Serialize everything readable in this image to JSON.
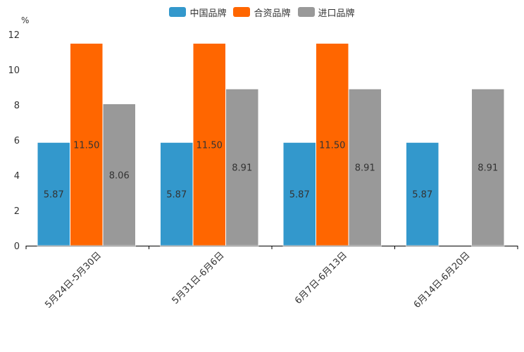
{
  "chart_data": {
    "type": "bar",
    "title": "",
    "xlabel": "",
    "ylabel": "%",
    "ylim": [
      0,
      12
    ],
    "yticks": [
      0,
      2,
      4,
      6,
      8,
      10,
      12
    ],
    "legend_position": "top-center",
    "grid": false,
    "categories": [
      "5月24日-5月30日",
      "5月31日-6月6日",
      "6月7日-6月13日",
      "6月14日-6月20日"
    ],
    "series": [
      {
        "name": "中国品牌",
        "color": "#3398cc",
        "values": [
          5.87,
          5.87,
          5.87,
          5.87
        ],
        "labels": [
          "5.87",
          "5.87",
          "5.87",
          "5.87"
        ]
      },
      {
        "name": "合资品牌",
        "color": "#ff6600",
        "values": [
          11.5,
          11.5,
          11.5,
          null
        ],
        "labels": [
          "11.50",
          "11.50",
          "11.50",
          ""
        ]
      },
      {
        "name": "进口品牌",
        "color": "#999999",
        "values": [
          8.06,
          8.91,
          8.91,
          8.91
        ],
        "labels": [
          "8.06",
          "8.91",
          "8.91",
          "8.91"
        ]
      }
    ]
  }
}
